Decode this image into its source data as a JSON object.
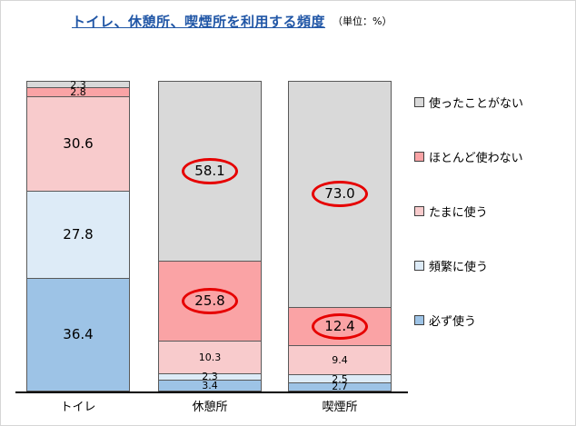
{
  "title": "トイレ、休憩所、喫煙所を利用する頻度",
  "unit_label": "（単位：%）",
  "chart_data": {
    "type": "bar",
    "variant": "stacked-vertical",
    "title": "トイレ、休憩所、喫煙所を利用する頻度",
    "unit": "%",
    "categories": [
      "トイレ",
      "休憩所",
      "喫煙所"
    ],
    "series_bottom_to_top": [
      {
        "name": "必ず使う",
        "color": "#9DC3E6",
        "values": [
          36.4,
          3.4,
          2.7
        ],
        "circled": [
          false,
          false,
          false
        ]
      },
      {
        "name": "頻繁に使う",
        "color": "#DDEBF7",
        "values": [
          27.8,
          2.3,
          2.5
        ],
        "circled": [
          false,
          false,
          false
        ]
      },
      {
        "name": "たまに使う",
        "color": "#F8CBCC",
        "values": [
          30.6,
          10.3,
          9.4
        ],
        "circled": [
          false,
          false,
          false
        ]
      },
      {
        "name": "ほとんど使わない",
        "color": "#FAA3A5",
        "values": [
          2.8,
          25.8,
          12.4
        ],
        "circled": [
          false,
          true,
          true
        ]
      },
      {
        "name": "使ったことがない",
        "color": "#D9D9D9",
        "values": [
          2.3,
          58.1,
          73.0
        ],
        "circled": [
          false,
          true,
          true
        ]
      }
    ],
    "legend_top_to_bottom": [
      "使ったことがない",
      "ほとんど使わない",
      "たまに使う",
      "頻繁に使う",
      "必ず使う"
    ],
    "ylim": [
      0,
      100
    ],
    "grid": false,
    "legend_position": "right",
    "annotation_circle_color": "#E60000"
  }
}
